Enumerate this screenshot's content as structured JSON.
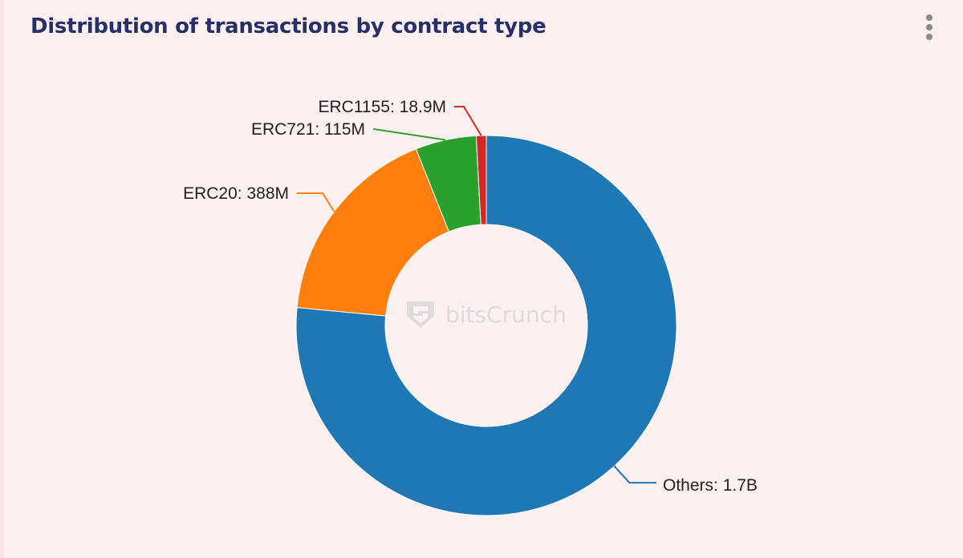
{
  "card": {
    "title": "Distribution of transactions by contract type",
    "menu_icon": "more-vertical-icon"
  },
  "watermark": {
    "text": "bitsCrunch",
    "icon": "bitscrunch-logo-icon"
  },
  "chart_data": {
    "type": "pie",
    "donut": true,
    "title": "Distribution of transactions by contract type",
    "labels": [
      "Others",
      "ERC20",
      "ERC721",
      "ERC1155"
    ],
    "values": [
      1700000000,
      388000000,
      115000000,
      18900000
    ],
    "data_labels": [
      "Others: 1.7B",
      "ERC20: 388M",
      "ERC721: 115M",
      "ERC1155: 18.9M"
    ],
    "colors": [
      "#1f77b4",
      "#ff7f0e",
      "#2ca02c",
      "#d62728"
    ],
    "sort": "descending",
    "direction": "clockwise",
    "start": "top",
    "legend": "none"
  }
}
